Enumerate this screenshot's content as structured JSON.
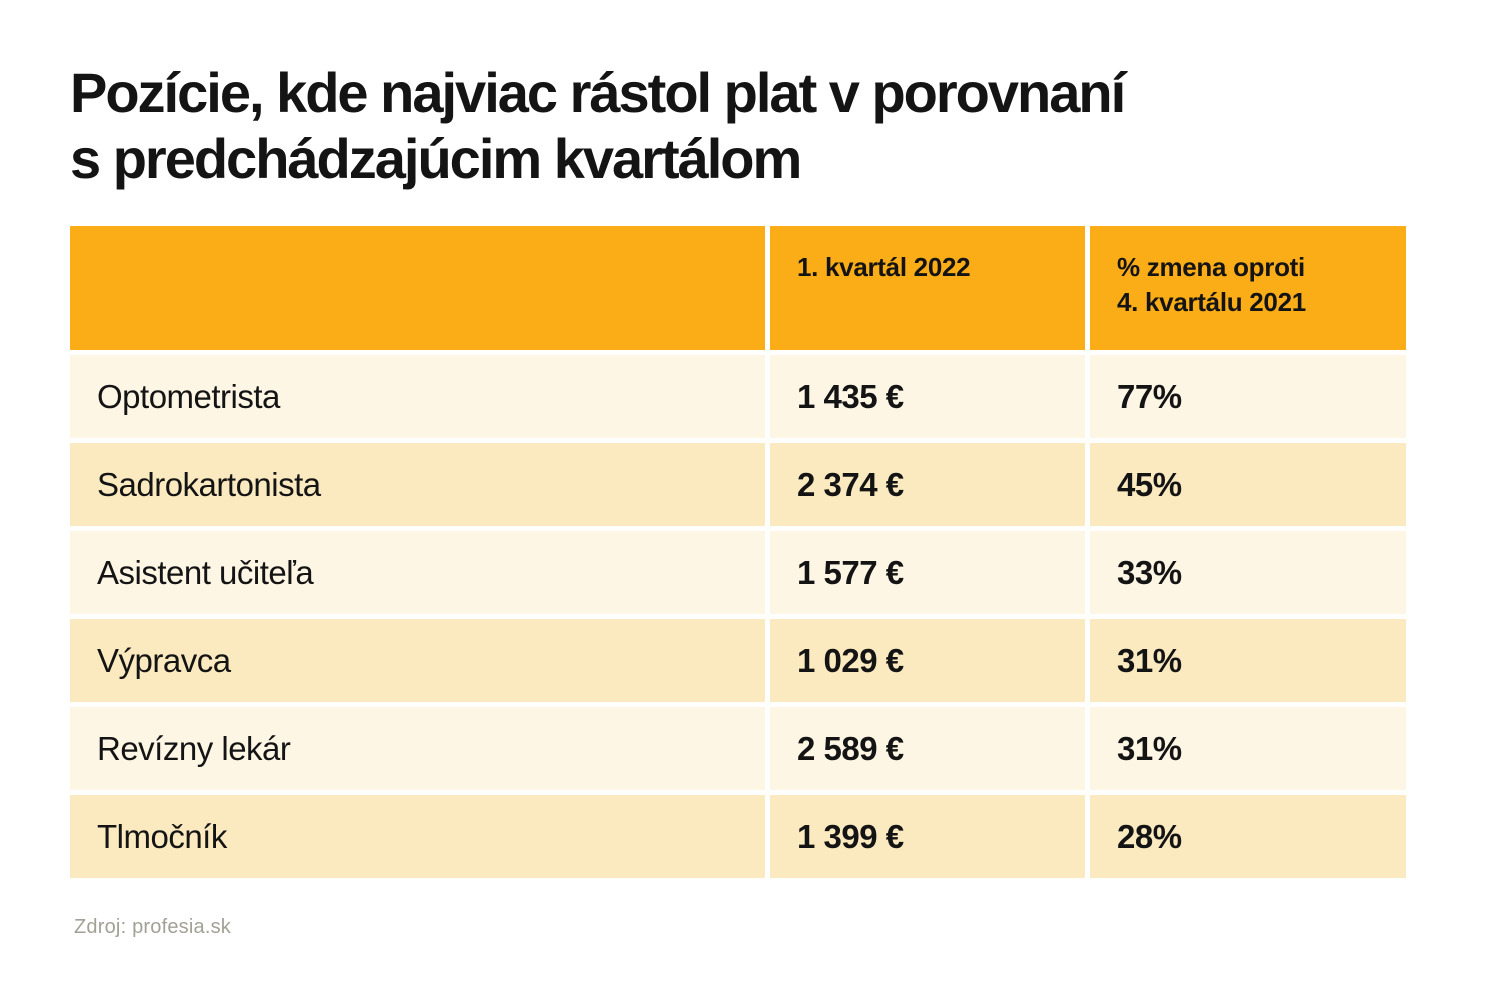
{
  "colors": {
    "header_orange": "#FBAD18",
    "row_light": "#FEF6E5",
    "row_dark": "#FBEAC0",
    "text_black": "#141414",
    "source_gray": "#A3A096"
  },
  "title": {
    "line1": "Pozície, kde najviac rástol plat v porovnaní",
    "line2": "s predchádzajúcim kvartálom"
  },
  "table": {
    "header": {
      "col1": "",
      "col2": "1. kvartál 2022",
      "col3_line1": "% zmena oproti",
      "col3_line2": "4. kvartálu 2021"
    },
    "rows": [
      {
        "position": "Optometrista",
        "salary": "1 435 €",
        "change": "77%"
      },
      {
        "position": "Sadrokartonista",
        "salary": "2 374 €",
        "change": "45%"
      },
      {
        "position": "Asistent učiteľa",
        "salary": "1 577 €",
        "change": "33%"
      },
      {
        "position": "Výpravca",
        "salary": "1 029 €",
        "change": "31%"
      },
      {
        "position": "Revízny lekár",
        "salary": "2 589 €",
        "change": "31%"
      },
      {
        "position": "Tlmočník",
        "salary": "1 399 €",
        "change": "28%"
      }
    ]
  },
  "source": {
    "text": "Zdroj: profesia.sk"
  },
  "chart_data": {
    "type": "table",
    "title": "Pozície, kde najviac rástol plat v porovnaní s predchádzajúcim kvartálom",
    "columns": [
      "",
      "1. kvartál 2022",
      "% zmena oproti 4. kvartálu 2021"
    ],
    "rows": [
      [
        "Optometrista",
        "1 435 €",
        "77%"
      ],
      [
        "Sadrokartonista",
        "2 374 €",
        "45%"
      ],
      [
        "Asistent učiteľa",
        "1 577 €",
        "33%"
      ],
      [
        "Výpravca",
        "1 029 €",
        "31%"
      ],
      [
        "Revízny lekár",
        "2 589 €",
        "31%"
      ],
      [
        "Tlmočník",
        "1 399 €",
        "28%"
      ]
    ],
    "salaries_eur_q1_2022": [
      1435,
      2374,
      1577,
      1029,
      2589,
      1399
    ],
    "change_percent_vs_q4_2021": [
      77,
      45,
      33,
      31,
      31,
      28
    ],
    "source": "Zdroj: profesia.sk"
  }
}
